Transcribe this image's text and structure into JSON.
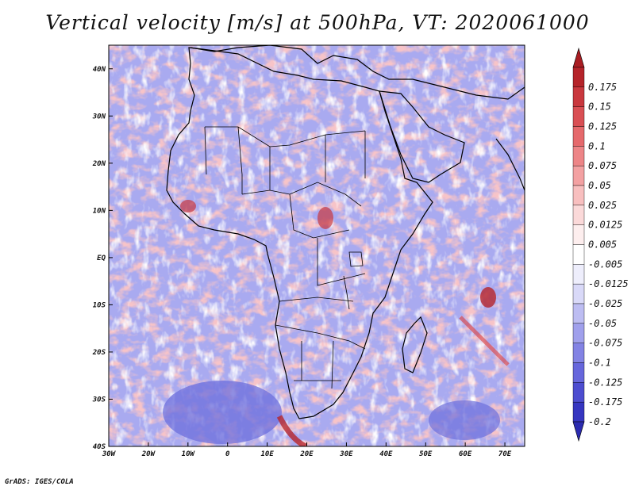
{
  "title": "Vertical velocity [m/s] at 500hPa, VT: 2020061000",
  "credit": "GrADS: IGES/COLA",
  "map": {
    "lon_range": [
      -30,
      75
    ],
    "lat_range": [
      -40,
      45
    ],
    "lon_ticks": [
      {
        "value": -30,
        "label": "30W"
      },
      {
        "value": -20,
        "label": "20W"
      },
      {
        "value": -10,
        "label": "10W"
      },
      {
        "value": 0,
        "label": "0"
      },
      {
        "value": 10,
        "label": "10E"
      },
      {
        "value": 20,
        "label": "20E"
      },
      {
        "value": 30,
        "label": "30E"
      },
      {
        "value": 40,
        "label": "40E"
      },
      {
        "value": 50,
        "label": "50E"
      },
      {
        "value": 60,
        "label": "60E"
      },
      {
        "value": 70,
        "label": "70E"
      }
    ],
    "lat_ticks": [
      {
        "value": 40,
        "label": "40N"
      },
      {
        "value": 30,
        "label": "30N"
      },
      {
        "value": 20,
        "label": "20N"
      },
      {
        "value": 10,
        "label": "10N"
      },
      {
        "value": 0,
        "label": "EQ"
      },
      {
        "value": -10,
        "label": "10S"
      },
      {
        "value": -20,
        "label": "20S"
      },
      {
        "value": -30,
        "label": "30S"
      },
      {
        "value": -40,
        "label": "40S"
      }
    ]
  },
  "colorbar": {
    "levels": [
      {
        "label": "0.175",
        "color": "#b5242a"
      },
      {
        "label": "0.15",
        "color": "#c9383e"
      },
      {
        "label": "0.125",
        "color": "#d94f54"
      },
      {
        "label": "0.1",
        "color": "#e5696c"
      },
      {
        "label": "0.075",
        "color": "#ed8587"
      },
      {
        "label": "0.05",
        "color": "#f3a1a2"
      },
      {
        "label": "0.025",
        "color": "#f8bfbf"
      },
      {
        "label": "0.0125",
        "color": "#fbd9d9"
      },
      {
        "label": "0.005",
        "color": "#fdeeee"
      },
      {
        "label": "-0.005",
        "color": "#ffffff"
      },
      {
        "label": "-0.0125",
        "color": "#eeeefc"
      },
      {
        "label": "-0.025",
        "color": "#d9d9f8"
      },
      {
        "label": "-0.05",
        "color": "#bdbdf2"
      },
      {
        "label": "-0.075",
        "color": "#a0a0ec"
      },
      {
        "label": "-0.1",
        "color": "#8383e4"
      },
      {
        "label": "-0.125",
        "color": "#6767dc"
      },
      {
        "label": "-0.175",
        "color": "#4d4dd0"
      },
      {
        "label": "-0.2",
        "color": "#3636c0"
      }
    ],
    "top_color": "#a91d22",
    "bottom_color": "#2b2bb0"
  }
}
